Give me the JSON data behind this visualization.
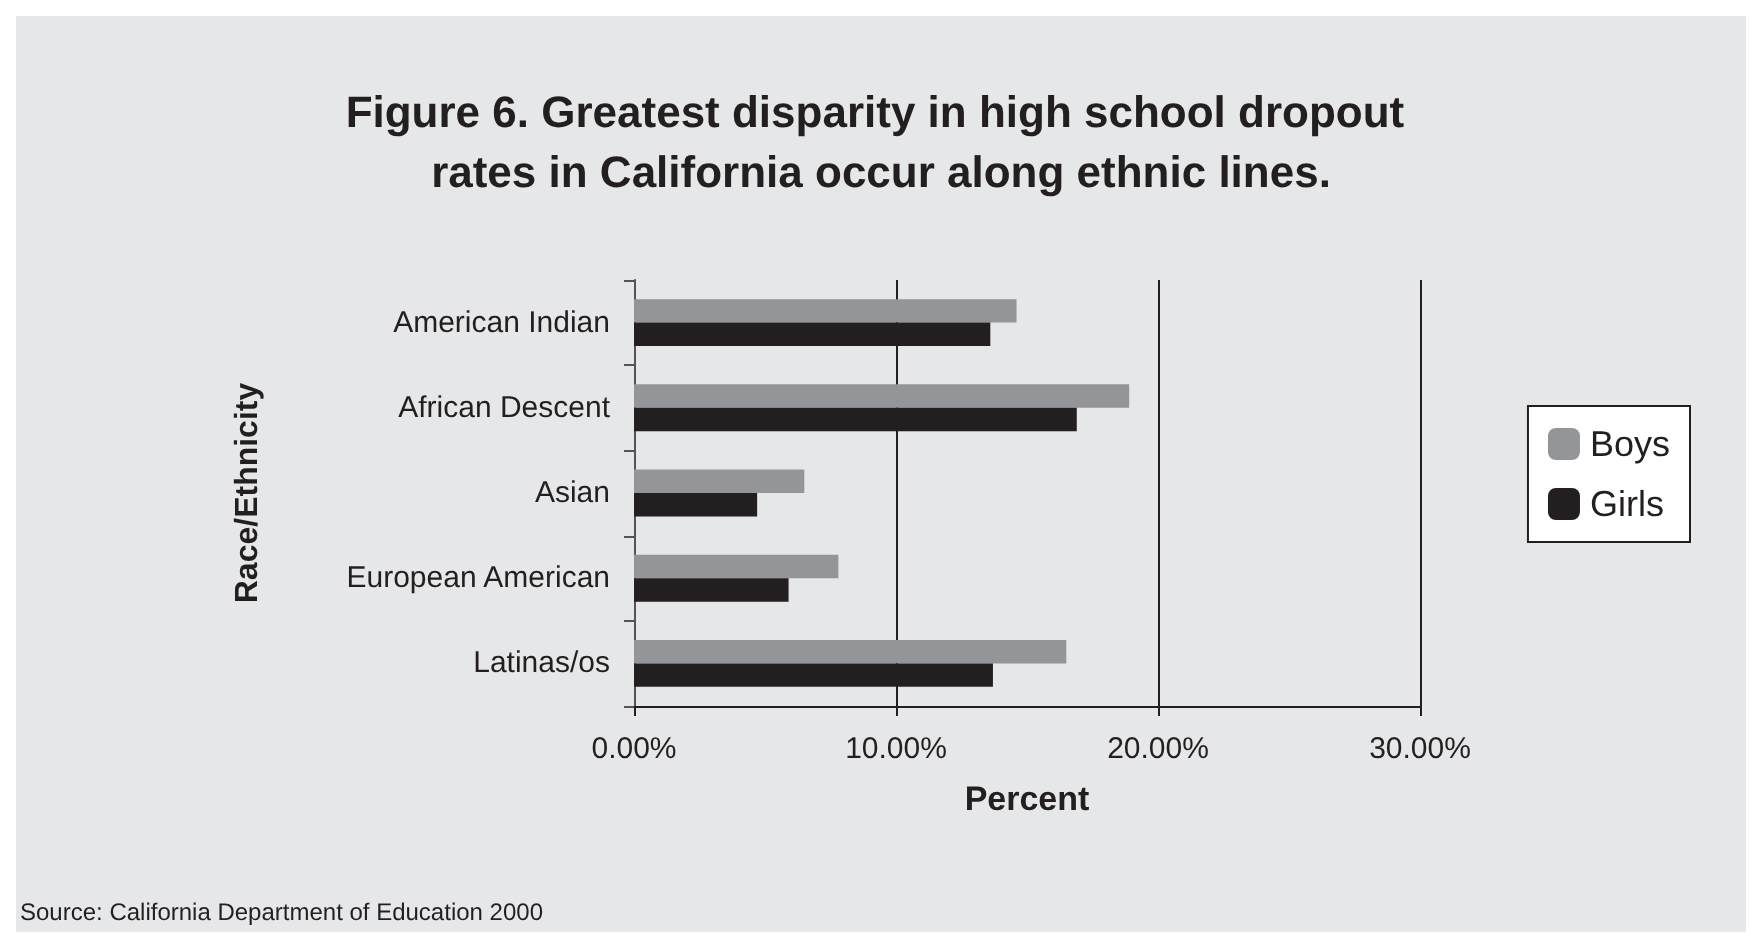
{
  "chart_data": {
    "type": "bar",
    "orientation": "horizontal",
    "title": "Figure 6. Greatest disparity in high school dropout rates in California occur along ethnic lines.",
    "xlabel": "Percent",
    "ylabel": "Race/Ethnicity",
    "categories": [
      "American Indian",
      "African Descent",
      "Asian",
      "European American",
      "Latinas/os"
    ],
    "series": [
      {
        "name": "Boys",
        "color": "#939598",
        "values": [
          14.6,
          18.9,
          6.5,
          7.8,
          16.5
        ]
      },
      {
        "name": "Girls",
        "color": "#231f20",
        "values": [
          13.6,
          16.9,
          4.7,
          5.9,
          13.7
        ]
      }
    ],
    "xlim": [
      0,
      30
    ],
    "xticks": [
      {
        "value": 0,
        "label": "0.00%"
      },
      {
        "value": 10,
        "label": "10.00%"
      },
      {
        "value": 20,
        "label": "20.00%"
      },
      {
        "value": 30,
        "label": "30.00%"
      }
    ],
    "grid": "x",
    "legend": "right",
    "annotations": [
      "Source: California Department of Education 2000"
    ]
  }
}
